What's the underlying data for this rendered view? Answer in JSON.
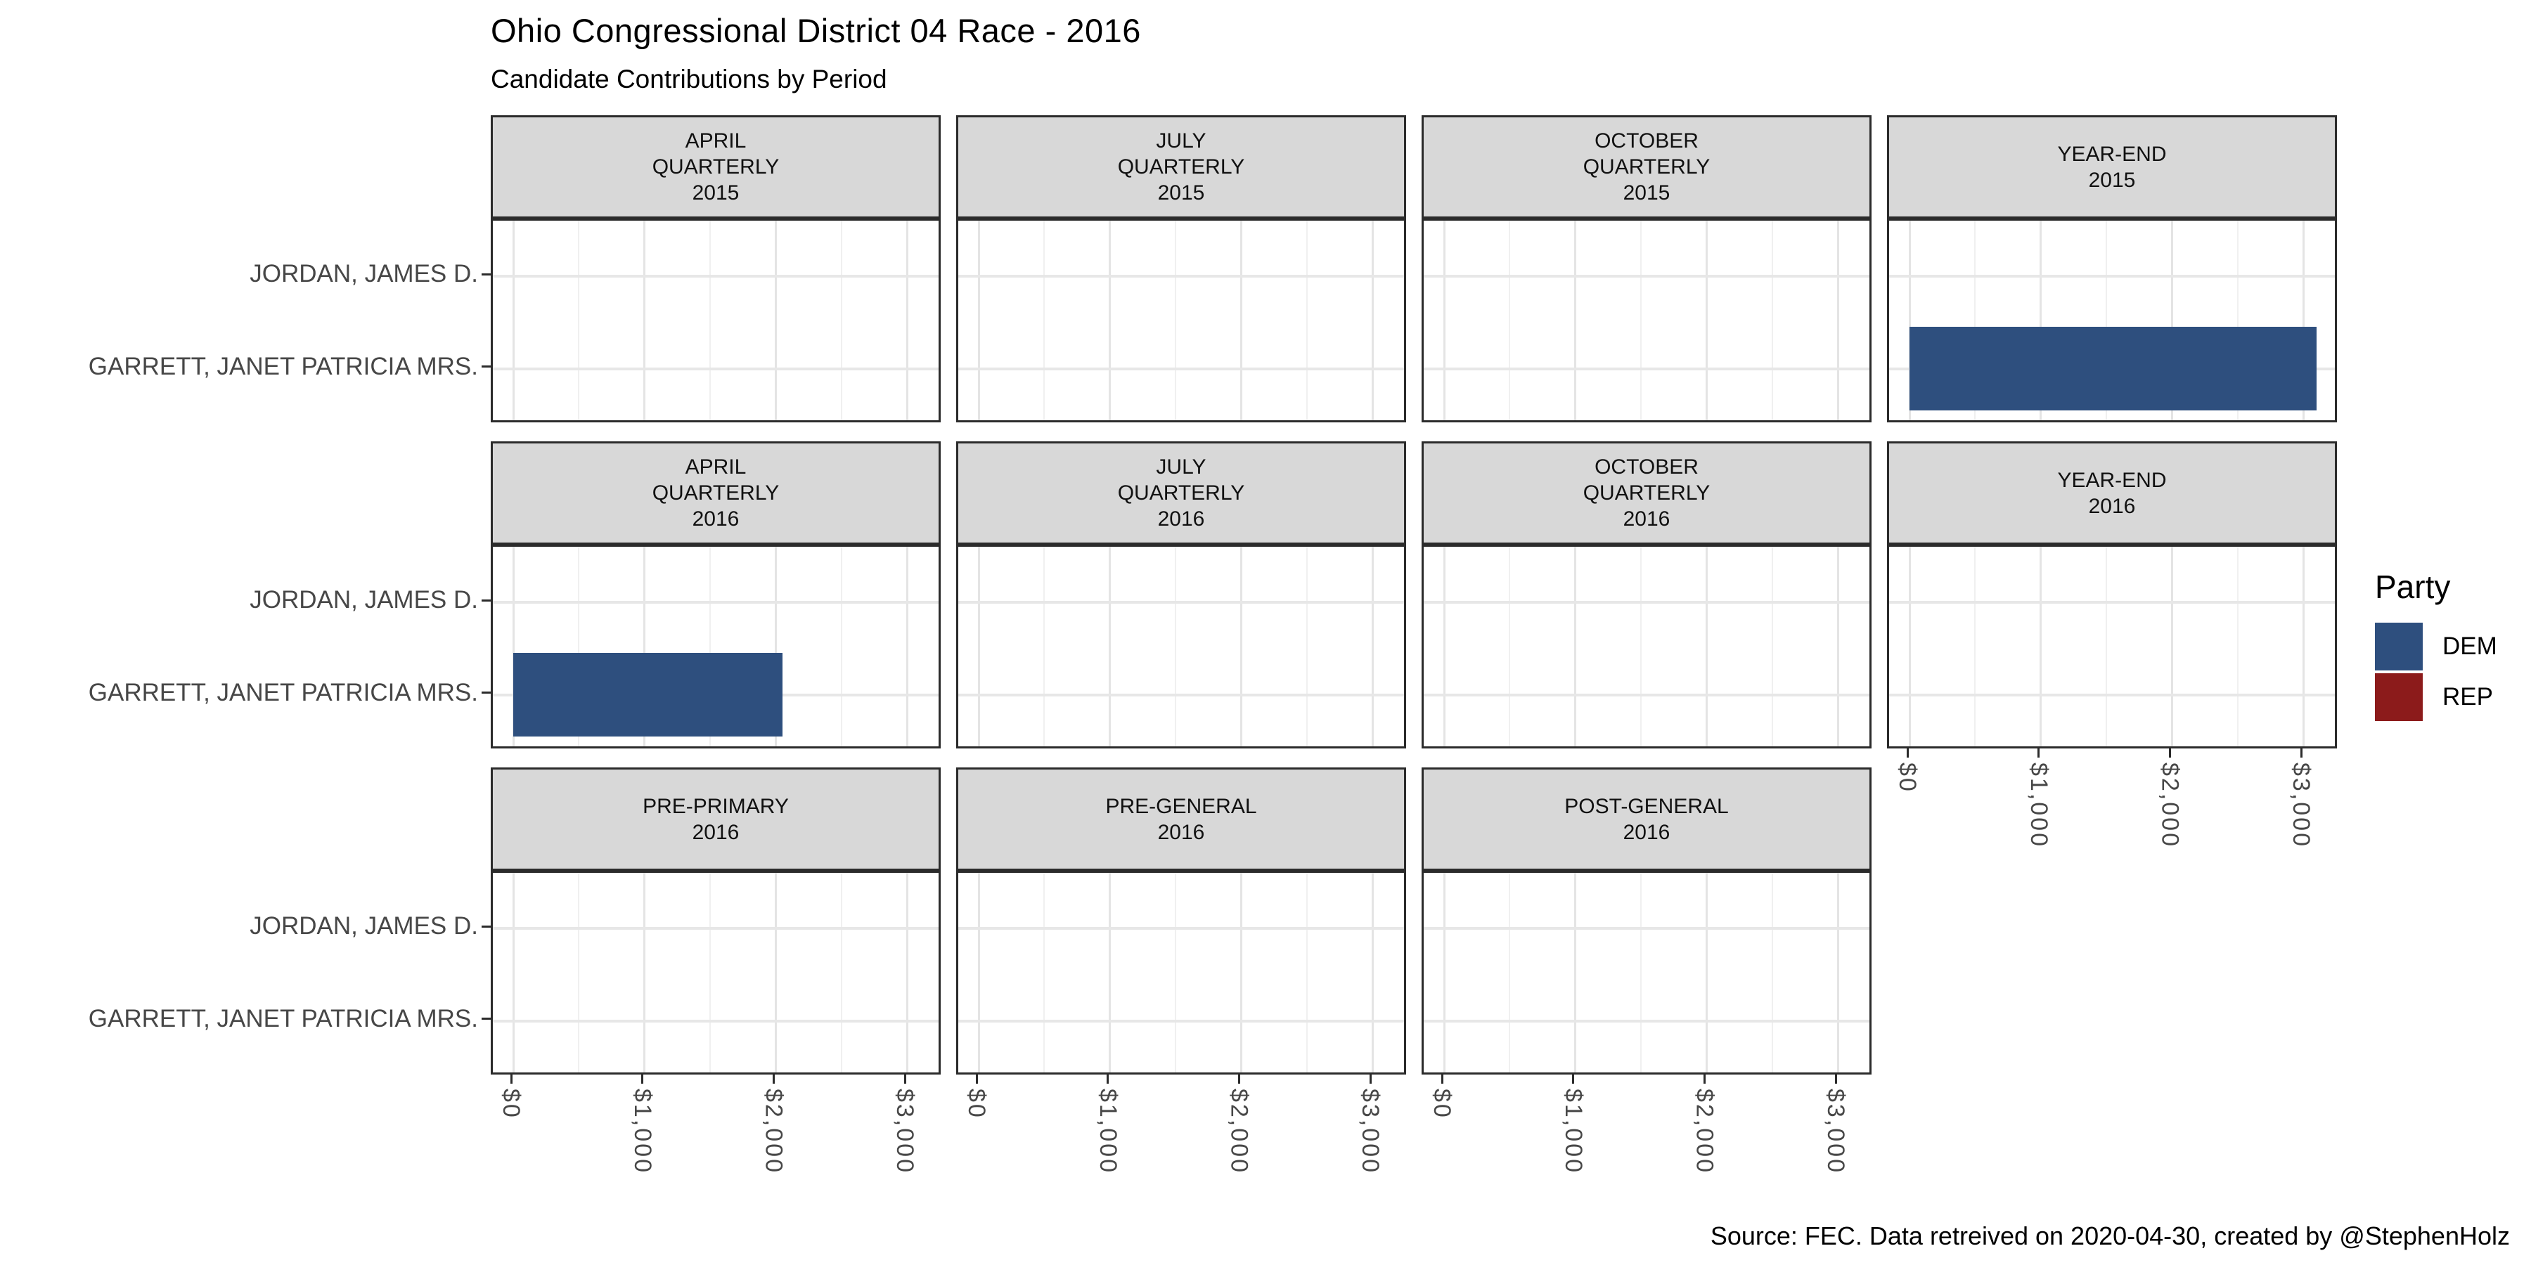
{
  "chart_data": {
    "type": "bar",
    "orientation": "horizontal",
    "title": "Ohio Congressional District 04 Race - 2016",
    "subtitle": "Candidate Contributions by Period",
    "caption": "Source: FEC. Data retreived on 2020-04-30, created by @StephenHolz",
    "xlabel": "",
    "ylabel": "",
    "grid": true,
    "x_ticks": [
      {
        "label": "$0",
        "value": 0
      },
      {
        "label": "$1,000",
        "value": 1000
      },
      {
        "label": "$2,000",
        "value": 2000
      },
      {
        "label": "$3,000",
        "value": 3000
      }
    ],
    "x_minor_gridlines": [
      500,
      1500,
      2500
    ],
    "x_range_dollars": [
      0,
      3270
    ],
    "y_categories": [
      "JORDAN, JAMES D.",
      "GARRETT, JANET PATRICIA MRS."
    ],
    "party_colors": {
      "DEM": "#2E4F7E",
      "REP": "#8C1B1B"
    },
    "legend": {
      "title": "Party",
      "position": "right",
      "entries": [
        {
          "label": "DEM",
          "color": "#2E4F7E"
        },
        {
          "label": "REP",
          "color": "#8C1B1B"
        }
      ]
    },
    "facets": [
      {
        "grid_row": 1,
        "grid_col": 1,
        "lines": [
          "APRIL",
          "QUARTERLY",
          "2015"
        ],
        "values": [
          {
            "candidate": "JORDAN, JAMES D.",
            "party": "REP",
            "amount": 0
          },
          {
            "candidate": "GARRETT, JANET PATRICIA MRS.",
            "party": "DEM",
            "amount": 0
          }
        ]
      },
      {
        "grid_row": 1,
        "grid_col": 2,
        "lines": [
          "JULY",
          "QUARTERLY",
          "2015"
        ],
        "values": [
          {
            "candidate": "JORDAN, JAMES D.",
            "party": "REP",
            "amount": 0
          },
          {
            "candidate": "GARRETT, JANET PATRICIA MRS.",
            "party": "DEM",
            "amount": 0
          }
        ]
      },
      {
        "grid_row": 1,
        "grid_col": 3,
        "lines": [
          "OCTOBER",
          "QUARTERLY",
          "2015"
        ],
        "values": [
          {
            "candidate": "JORDAN, JAMES D.",
            "party": "REP",
            "amount": 0
          },
          {
            "candidate": "GARRETT, JANET PATRICIA MRS.",
            "party": "DEM",
            "amount": 0
          }
        ]
      },
      {
        "grid_row": 1,
        "grid_col": 4,
        "lines": [
          "YEAR-END",
          "2015"
        ],
        "values": [
          {
            "candidate": "JORDAN, JAMES D.",
            "party": "REP",
            "amount": 0
          },
          {
            "candidate": "GARRETT, JANET PATRICIA MRS.",
            "party": "DEM",
            "amount": 3100
          }
        ]
      },
      {
        "grid_row": 2,
        "grid_col": 1,
        "lines": [
          "APRIL",
          "QUARTERLY",
          "2016"
        ],
        "values": [
          {
            "candidate": "JORDAN, JAMES D.",
            "party": "REP",
            "amount": 0
          },
          {
            "candidate": "GARRETT, JANET PATRICIA MRS.",
            "party": "DEM",
            "amount": 2050
          }
        ]
      },
      {
        "grid_row": 2,
        "grid_col": 2,
        "lines": [
          "JULY",
          "QUARTERLY",
          "2016"
        ],
        "values": [
          {
            "candidate": "JORDAN, JAMES D.",
            "party": "REP",
            "amount": 0
          },
          {
            "candidate": "GARRETT, JANET PATRICIA MRS.",
            "party": "DEM",
            "amount": 0
          }
        ]
      },
      {
        "grid_row": 2,
        "grid_col": 3,
        "lines": [
          "OCTOBER",
          "QUARTERLY",
          "2016"
        ],
        "values": [
          {
            "candidate": "JORDAN, JAMES D.",
            "party": "REP",
            "amount": 0
          },
          {
            "candidate": "GARRETT, JANET PATRICIA MRS.",
            "party": "DEM",
            "amount": 0
          }
        ]
      },
      {
        "grid_row": 2,
        "grid_col": 4,
        "lines": [
          "YEAR-END",
          "2016"
        ],
        "values": [
          {
            "candidate": "JORDAN, JAMES D.",
            "party": "REP",
            "amount": 0
          },
          {
            "candidate": "GARRETT, JANET PATRICIA MRS.",
            "party": "DEM",
            "amount": 0
          }
        ]
      },
      {
        "grid_row": 3,
        "grid_col": 1,
        "lines": [
          "PRE-PRIMARY",
          "2016"
        ],
        "values": [
          {
            "candidate": "JORDAN, JAMES D.",
            "party": "REP",
            "amount": 0
          },
          {
            "candidate": "GARRETT, JANET PATRICIA MRS.",
            "party": "DEM",
            "amount": 0
          }
        ]
      },
      {
        "grid_row": 3,
        "grid_col": 2,
        "lines": [
          "PRE-GENERAL",
          "2016"
        ],
        "values": [
          {
            "candidate": "JORDAN, JAMES D.",
            "party": "REP",
            "amount": 0
          },
          {
            "candidate": "GARRETT, JANET PATRICIA MRS.",
            "party": "DEM",
            "amount": 0
          }
        ]
      },
      {
        "grid_row": 3,
        "grid_col": 3,
        "lines": [
          "POST-GENERAL",
          "2016"
        ],
        "values": [
          {
            "candidate": "JORDAN, JAMES D.",
            "party": "REP",
            "amount": 0
          },
          {
            "candidate": "GARRETT, JANET PATRICIA MRS.",
            "party": "DEM",
            "amount": 0
          }
        ]
      }
    ]
  }
}
